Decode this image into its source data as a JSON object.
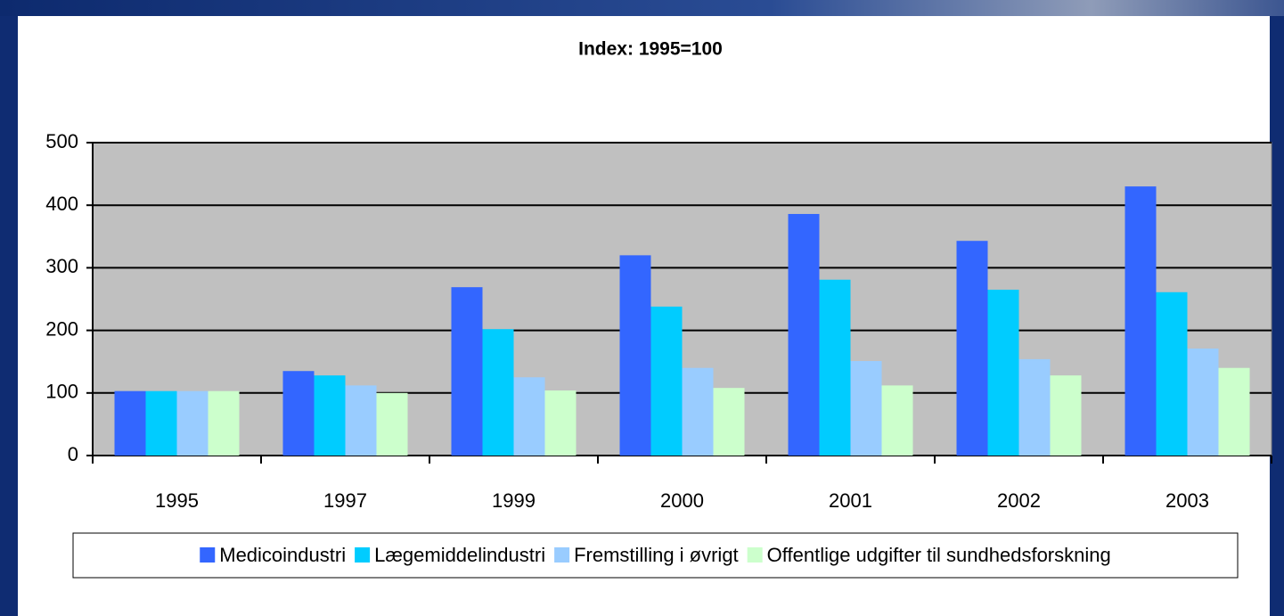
{
  "chart_data": {
    "type": "bar",
    "title": "Index: 1995=100",
    "categories": [
      "1995",
      "1997",
      "1999",
      "2000",
      "2001",
      "2002",
      "2003"
    ],
    "series": [
      {
        "name": "Medicoindustri",
        "color": "#3366ff",
        "values": [
          103,
          135,
          269,
          320,
          386,
          343,
          430
        ]
      },
      {
        "name": "Lægemiddelindustri",
        "color": "#00ccff",
        "values": [
          103,
          128,
          202,
          238,
          281,
          265,
          261
        ]
      },
      {
        "name": "Fremstilling i øvrigt",
        "color": "#99ccff",
        "values": [
          103,
          112,
          125,
          140,
          151,
          154,
          171
        ]
      },
      {
        "name": "Offentlige udgifter til sundhedsforskning",
        "color": "#ccffcc",
        "values": [
          103,
          100,
          104,
          108,
          112,
          128,
          140
        ]
      }
    ],
    "ylim": [
      0,
      500
    ],
    "yticks": [
      0,
      100,
      200,
      300,
      400,
      500
    ],
    "grid": true,
    "legend": "bottom"
  }
}
